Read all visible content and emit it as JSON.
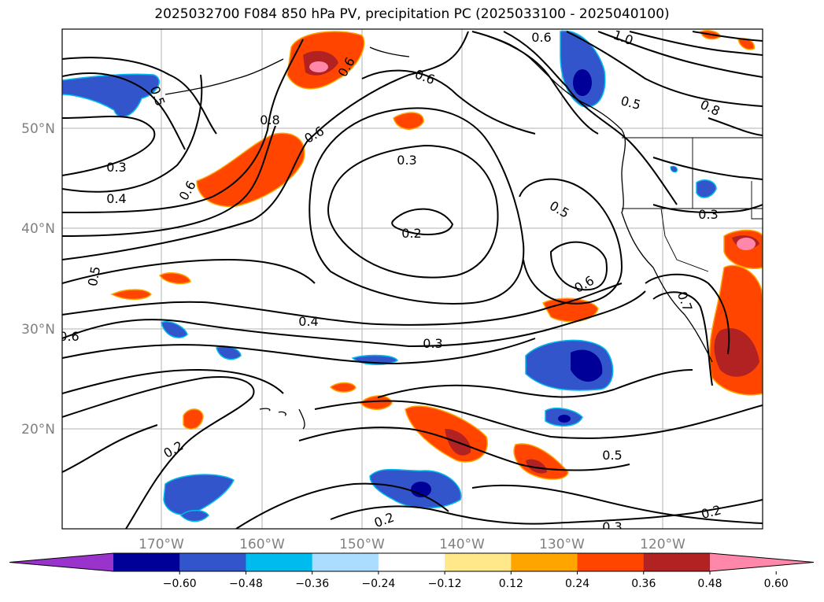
{
  "title": "2025032700 F084 850 hPa PV, precipitation PC (2025033100 - 2025040100)",
  "map": {
    "lat_ticks": [
      "50°N",
      "40°N",
      "30°N",
      "20°N"
    ],
    "lon_ticks": [
      "170°W",
      "160°W",
      "150°W",
      "140°W",
      "130°W",
      "120°W"
    ],
    "contour_labels": [
      "0.6",
      "0.6",
      "0.8",
      "0.6",
      "0.3",
      "0.4",
      "0.6",
      "0.5",
      "0.3",
      "0.2",
      "0.5",
      "0.5",
      "0.6",
      "0.4",
      "0.3",
      "0.6",
      "0.2",
      "0.2",
      "0.5",
      "0.2",
      "0.3",
      "0.8",
      "0.5",
      "0.3",
      "1.0",
      "0.7",
      "0.6"
    ]
  },
  "colorbar": {
    "colors": [
      "#9933cc",
      "#000099",
      "#3355cc",
      "#00bbee",
      "#aaddff",
      "#ffffff",
      "#ffe88a",
      "#ffa500",
      "#ff4500",
      "#b22222",
      "#ff88aa"
    ],
    "ticks": [
      "−0.60",
      "−0.48",
      "−0.36",
      "−0.24",
      "−0.12",
      "0.12",
      "0.24",
      "0.36",
      "0.48",
      "0.60"
    ]
  }
}
